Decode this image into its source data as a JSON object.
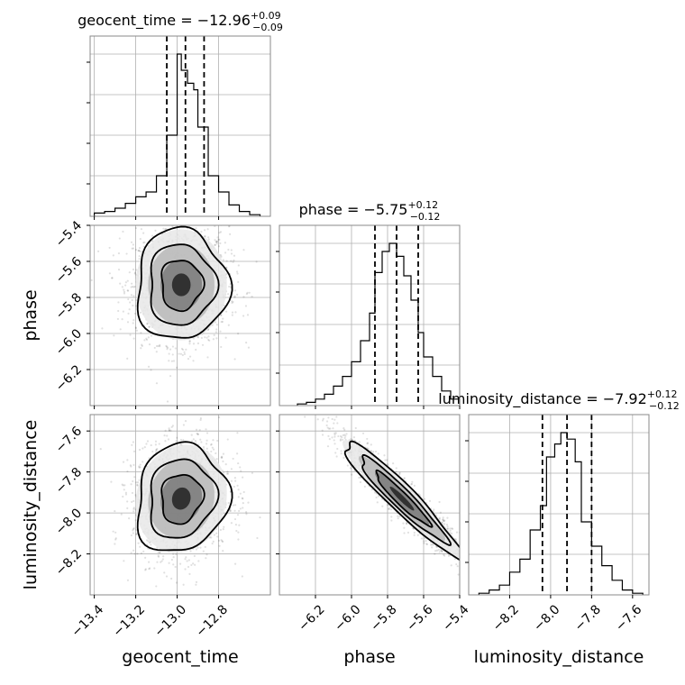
{
  "chart_data": {
    "type": "corner",
    "parameters": [
      "geocent_time",
      "phase",
      "luminosity_distance"
    ],
    "labels": {
      "geocent_time": "geocent_time",
      "phase": "phase",
      "luminosity_distance": "luminosity_distance"
    },
    "ranges": {
      "geocent_time": [
        -13.42,
        -12.55
      ],
      "phase": [
        -6.4,
        -5.4
      ],
      "luminosity_distance": [
        -8.4,
        -7.52
      ]
    },
    "ticks": {
      "geocent_time": [
        -13.4,
        -13.2,
        -13.0,
        -12.8
      ],
      "phase": [
        -6.2,
        -6.0,
        -5.8,
        -5.6,
        -5.4
      ],
      "luminosity_distance": [
        -8.2,
        -8.0,
        -7.8,
        -7.6
      ]
    },
    "tick_labels": {
      "geocent_time": [
        "−13.4",
        "−13.2",
        "−13.0",
        "−12.8"
      ],
      "phase": [
        "−6.2",
        "−6.0",
        "−5.8",
        "−5.6",
        "−5.4"
      ],
      "luminosity_distance": [
        "−8.2",
        "−8.0",
        "−7.8",
        "−7.6"
      ]
    },
    "summaries": {
      "geocent_time": {
        "name": "geocent_time",
        "median": "−12.96",
        "plus": "+0.09",
        "minus": "−0.09"
      },
      "phase": {
        "name": "phase",
        "median": "−5.75",
        "plus": "+0.12",
        "minus": "−0.12"
      },
      "luminosity_distance": {
        "name": "luminosity_distance",
        "median": "−7.92",
        "plus": "+0.12",
        "minus": "−0.12"
      }
    },
    "quantiles": {
      "geocent_time": [
        -13.05,
        -12.96,
        -12.87
      ],
      "phase": [
        -5.87,
        -5.75,
        -5.63
      ],
      "luminosity_distance": [
        -8.04,
        -7.92,
        -7.8
      ]
    },
    "histograms": {
      "geocent_time": {
        "edges": [
          -13.4,
          -13.35,
          -13.3,
          -13.25,
          -13.2,
          -13.15,
          -13.1,
          -13.05,
          -13.0,
          -12.98,
          -12.95,
          -12.92,
          -12.9,
          -12.85,
          -12.8,
          -12.75,
          -12.7,
          -12.65,
          -12.6
        ],
        "values": [
          0.02,
          0.03,
          0.05,
          0.08,
          0.12,
          0.15,
          0.25,
          0.5,
          1.0,
          0.9,
          0.82,
          0.78,
          0.55,
          0.25,
          0.15,
          0.07,
          0.03,
          0.01
        ]
      },
      "phase": {
        "edges": [
          -6.3,
          -6.25,
          -6.2,
          -6.15,
          -6.1,
          -6.05,
          -6.0,
          -5.95,
          -5.9,
          -5.87,
          -5.83,
          -5.79,
          -5.75,
          -5.71,
          -5.67,
          -5.63,
          -5.6,
          -5.55,
          -5.5,
          -5.45,
          -5.4
        ],
        "values": [
          0.01,
          0.02,
          0.04,
          0.07,
          0.12,
          0.18,
          0.27,
          0.4,
          0.57,
          0.82,
          0.95,
          1.0,
          0.92,
          0.8,
          0.65,
          0.45,
          0.3,
          0.18,
          0.09,
          0.04
        ]
      },
      "luminosity_distance": {
        "edges": [
          -8.35,
          -8.3,
          -8.25,
          -8.2,
          -8.15,
          -8.1,
          -8.05,
          -8.02,
          -7.98,
          -7.95,
          -7.92,
          -7.88,
          -7.85,
          -7.8,
          -7.75,
          -7.7,
          -7.65,
          -7.6,
          -7.55
        ],
        "values": [
          0.01,
          0.03,
          0.06,
          0.14,
          0.22,
          0.4,
          0.55,
          0.85,
          0.93,
          1.0,
          0.96,
          0.82,
          0.45,
          0.3,
          0.18,
          0.09,
          0.03,
          0.01
        ]
      }
    },
    "pairs": [
      {
        "x": "geocent_time",
        "y": "phase",
        "mean": [
          -12.98,
          -5.73
        ],
        "sd": [
          0.1,
          0.14
        ],
        "corr": 0.0,
        "contour_scales": [
          1.0,
          1.6,
          2.2
        ]
      },
      {
        "x": "geocent_time",
        "y": "luminosity_distance",
        "mean": [
          -12.98,
          -7.93
        ],
        "sd": [
          0.1,
          0.12
        ],
        "corr": 0.1,
        "contour_scales": [
          1.0,
          1.6,
          2.2
        ]
      },
      {
        "x": "phase",
        "y": "luminosity_distance",
        "mean": [
          -5.72,
          -7.93
        ],
        "sd": [
          0.15,
          0.13
        ],
        "corr": -0.95,
        "contour_scales": [
          1.0,
          1.6,
          2.2
        ]
      }
    ],
    "grid": true,
    "colors": {
      "line": "#000000",
      "grid": "#b0b0b0",
      "frame": "#888888"
    }
  }
}
